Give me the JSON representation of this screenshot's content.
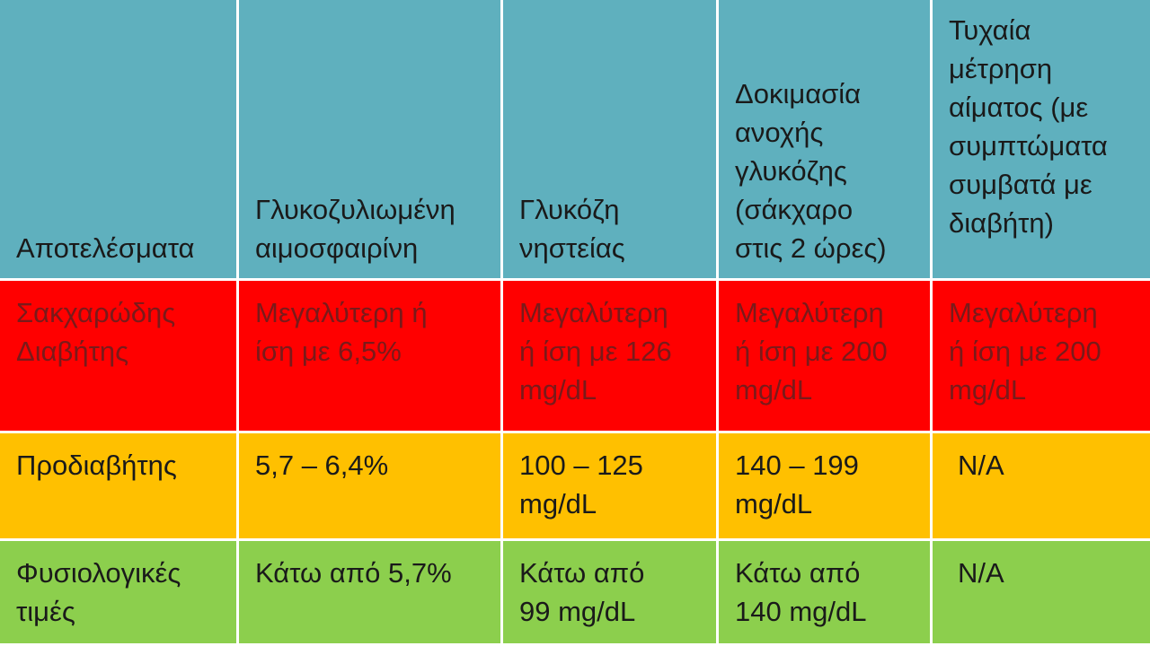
{
  "table": {
    "headers": [
      "Αποτελέσματα",
      "Γλυκοζυλιωμένη\nαιμοσφαιρίνη",
      "Γλυκόζη\nνηστείας",
      "Δοκιμασία\nανοχής\nγλυκόζης\n(σάκχαρο\nστις 2 ώρες)",
      "Τυχαία\nμέτρηση\nαίματος (με\nσυμπτώματα\nσυμβατά με\nδιαβήτη)"
    ],
    "rows": [
      {
        "label": "Σακχαρώδης\nΔιαβήτης",
        "cells": [
          "Μεγαλύτερη ή\nίση με 6,5%",
          "Μεγαλύτερη\nή ίση με 126\nmg/dL",
          "Μεγαλύτερη\nή ίση με 200\nmg/dL",
          "Μεγαλύτερη\nή ίση με 200\nmg/dL"
        ]
      },
      {
        "label": "Προδιαβήτης",
        "cells": [
          "5,7 – 6,4%",
          "100 – 125\nmg/dL",
          "140 – 199\nmg/dL",
          "N/A"
        ]
      },
      {
        "label": "Φυσιολογικές\nτιμές",
        "cells": [
          "Κάτω από 5,7%",
          "Κάτω από\n99 mg/dL",
          "Κάτω από\n140 mg/dL",
          "N/A"
        ]
      }
    ]
  },
  "colors": {
    "header": "#5fb0be",
    "diabetes": "#ff0000",
    "prediabetes": "#ffc000",
    "normal": "#8ccf4d"
  }
}
